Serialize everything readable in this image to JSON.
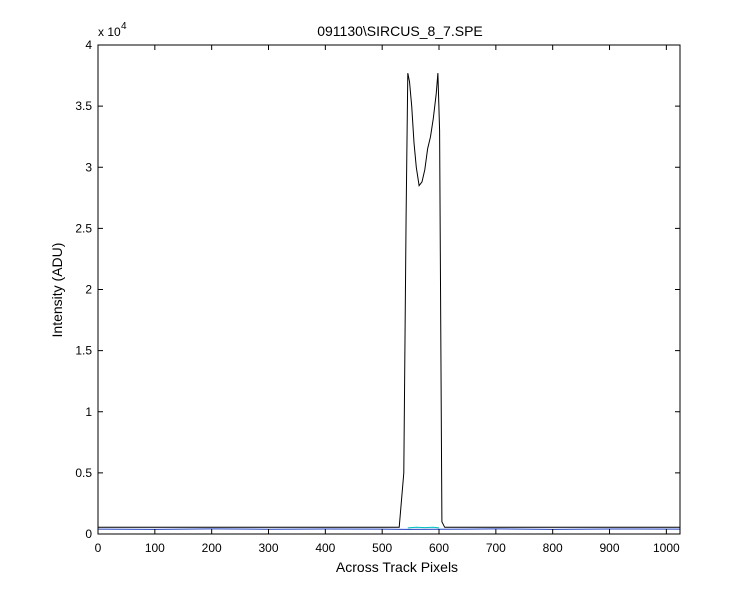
{
  "chart_data": {
    "type": "line",
    "title": "091130\\SIRCUS_8_7.SPE",
    "xlabel": "Across Track Pixels",
    "ylabel": "Intensity (ADU)",
    "xlim": [
      0,
      1024
    ],
    "ylim": [
      0,
      40000
    ],
    "x_ticks": [
      0,
      100,
      200,
      300,
      400,
      500,
      600,
      700,
      800,
      900,
      1000
    ],
    "y_ticks": [
      0,
      5000,
      10000,
      15000,
      20000,
      25000,
      30000,
      35000,
      40000
    ],
    "y_tick_labels": [
      "0",
      "0.5",
      "1",
      "1.5",
      "2",
      "2.5",
      "3",
      "3.5",
      "4"
    ],
    "y_exponent_label": "x 10",
    "y_exponent_power": "4",
    "grid": false,
    "series": [
      {
        "color": "#000000",
        "x": [
          0,
          100,
          200,
          300,
          400,
          500,
          530,
          538,
          542,
          545,
          548,
          552,
          556,
          560,
          565,
          570,
          575,
          580,
          585,
          590,
          595,
          598,
          601,
          605,
          610,
          700,
          800,
          900,
          1024
        ],
        "y": [
          550,
          550,
          550,
          550,
          550,
          550,
          550,
          5000,
          26000,
          37700,
          37000,
          35000,
          32000,
          30000,
          28500,
          28800,
          29800,
          31500,
          32500,
          34000,
          36000,
          37700,
          33000,
          1000,
          550,
          550,
          550,
          550,
          550
        ]
      },
      {
        "color": "#1f3fbf",
        "x": [
          0,
          100,
          200,
          300,
          400,
          500,
          540,
          600,
          650,
          700,
          800,
          900,
          1024
        ],
        "y": [
          400,
          380,
          420,
          390,
          410,
          400,
          380,
          390,
          400,
          420,
          380,
          410,
          400
        ]
      },
      {
        "color": "#00bfbf",
        "x": [
          545,
          560,
          575,
          590,
          600
        ],
        "y": [
          500,
          550,
          520,
          560,
          500
        ]
      }
    ]
  }
}
